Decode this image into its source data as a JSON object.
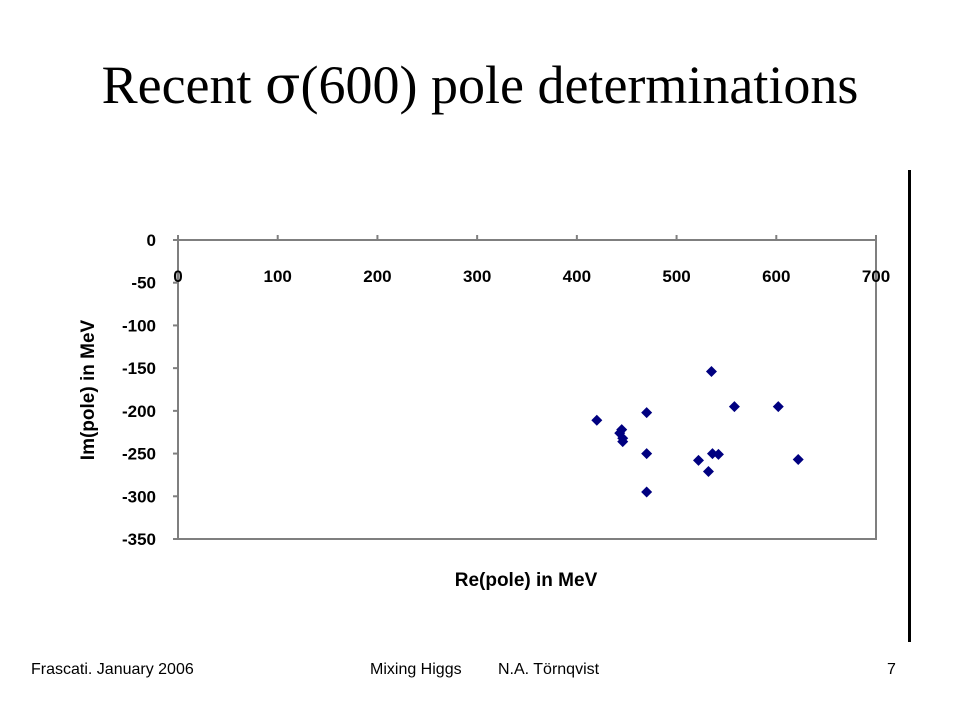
{
  "slide": {
    "title_prefix": "Recent ",
    "title_symbol": "σ",
    "title_suffix": "(600) pole determinations"
  },
  "footer": {
    "left": "Frascati.  January 2006",
    "center_title": "Mixing Higgs",
    "author": "N.A. Törnqvist",
    "page_number": "7"
  },
  "colors": {
    "marker": "#000080",
    "axis": "#7f7f7f",
    "text": "#000000"
  },
  "chart_data": {
    "type": "scatter",
    "title": "",
    "xlabel": "Re(pole) in MeV",
    "ylabel": "Im(pole) in MeV",
    "xlim": [
      0,
      700
    ],
    "ylim": [
      -350,
      0
    ],
    "x_ticks": [
      0,
      100,
      200,
      300,
      400,
      500,
      600,
      700
    ],
    "y_ticks": [
      0,
      -50,
      -100,
      -150,
      -200,
      -250,
      -300,
      -350
    ],
    "grid": false,
    "legend": "none",
    "marker": "diamond",
    "points": [
      {
        "x": 420,
        "y": -211
      },
      {
        "x": 445,
        "y": -222
      },
      {
        "x": 443,
        "y": -226
      },
      {
        "x": 446,
        "y": -232
      },
      {
        "x": 446,
        "y": -236
      },
      {
        "x": 470,
        "y": -202
      },
      {
        "x": 470,
        "y": -250
      },
      {
        "x": 470,
        "y": -295
      },
      {
        "x": 522,
        "y": -258
      },
      {
        "x": 532,
        "y": -271
      },
      {
        "x": 535,
        "y": -154
      },
      {
        "x": 536,
        "y": -250
      },
      {
        "x": 542,
        "y": -251
      },
      {
        "x": 558,
        "y": -195
      },
      {
        "x": 602,
        "y": -195
      },
      {
        "x": 622,
        "y": -257
      }
    ]
  }
}
